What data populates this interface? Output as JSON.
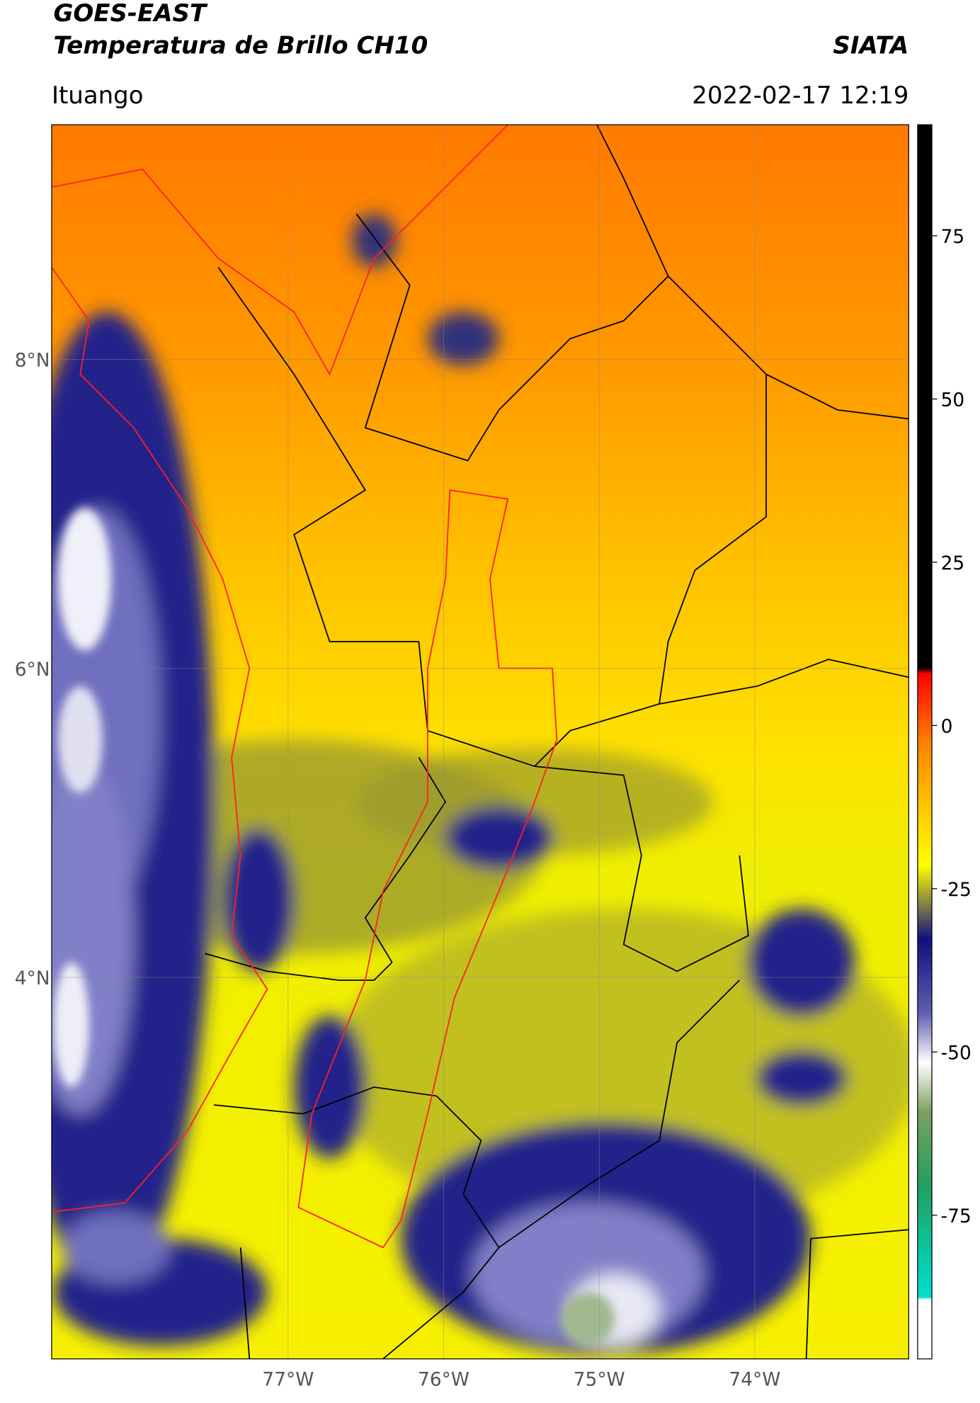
{
  "header": {
    "title_line1": "GOES-EAST",
    "title_line2": "Temperatura de Brillo CH10",
    "brand": "SIATA",
    "location": "Ituango",
    "datetime": "2022-02-17 12:19"
  },
  "map": {
    "xlim": [
      -78.52,
      -73.01
    ],
    "ylim": [
      1.53,
      9.52
    ],
    "xticks": [
      {
        "value": -77,
        "label": "77°W"
      },
      {
        "value": -76,
        "label": "76°W"
      },
      {
        "value": -75,
        "label": "75°W"
      },
      {
        "value": -74,
        "label": "74°W"
      }
    ],
    "yticks": [
      {
        "value": 4,
        "label": "4°N"
      },
      {
        "value": 6,
        "label": "6°N"
      },
      {
        "value": 8,
        "label": "8°N"
      }
    ],
    "grid": true
  },
  "colorbar": {
    "lim": [
      -97,
      92
    ],
    "ticks": [
      -75,
      -50,
      -25,
      0,
      25,
      50,
      75
    ]
  }
}
